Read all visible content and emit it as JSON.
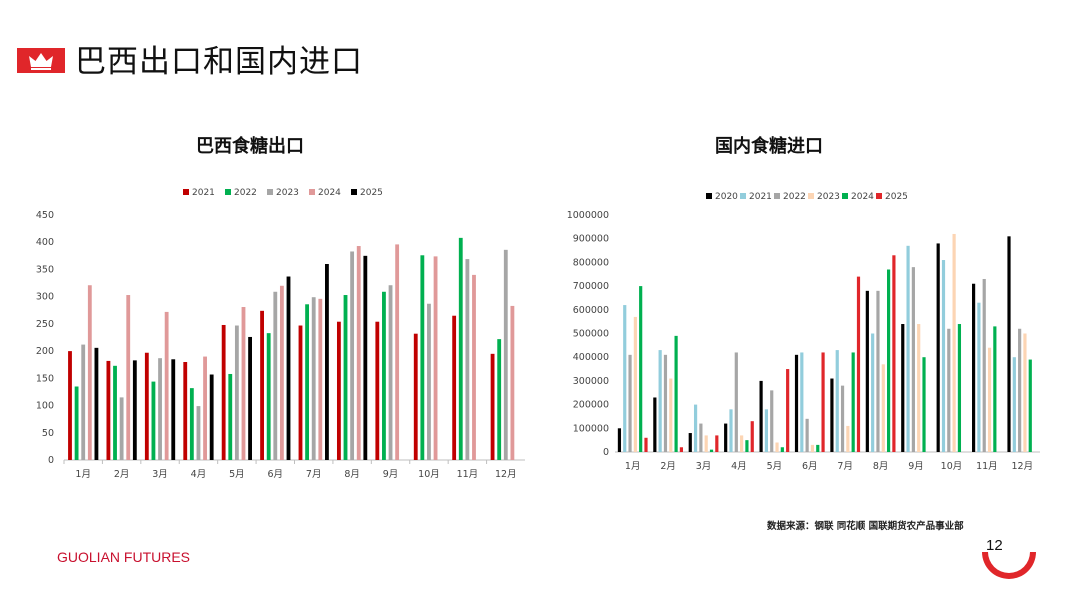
{
  "page": {
    "title": "巴西出口和国内进口",
    "source": "数据来源：钢联  同花顺  国联期货农产品事业部",
    "brand": "GUOLIAN FUTURES",
    "page_number": "12",
    "accent_color": "#e0262a"
  },
  "chart_data": [
    {
      "type": "bar",
      "title": "巴西食糖出口",
      "categories": [
        "1月",
        "2月",
        "3月",
        "4月",
        "5月",
        "6月",
        "7月",
        "8月",
        "9月",
        "10月",
        "11月",
        "12月"
      ],
      "ylim": [
        0,
        450
      ],
      "yticks": [
        0,
        50,
        100,
        150,
        200,
        250,
        300,
        350,
        400,
        450
      ],
      "legend_position": "top-center",
      "grid": false,
      "series": [
        {
          "name": "2021",
          "color": "#c00000",
          "values": [
            200,
            182,
            197,
            180,
            248,
            274,
            247,
            254,
            254,
            232,
            265,
            195
          ]
        },
        {
          "name": "2022",
          "color": "#00b050",
          "values": [
            135,
            173,
            144,
            132,
            158,
            233,
            286,
            303,
            309,
            376,
            408,
            222
          ]
        },
        {
          "name": "2023",
          "color": "#a6a6a6",
          "values": [
            212,
            115,
            187,
            99,
            247,
            309,
            299,
            383,
            321,
            287,
            369,
            386
          ]
        },
        {
          "name": "2024",
          "color": "#e09999",
          "values": [
            321,
            303,
            272,
            190,
            281,
            320,
            296,
            393,
            396,
            374,
            340,
            283
          ]
        },
        {
          "name": "2025",
          "color": "#000000",
          "values": [
            206,
            183,
            185,
            157,
            226,
            337,
            360,
            375,
            null,
            null,
            null,
            null
          ]
        }
      ]
    },
    {
      "type": "bar",
      "title": "国内食糖进口",
      "categories": [
        "1月",
        "2月",
        "3月",
        "4月",
        "5月",
        "6月",
        "7月",
        "8月",
        "9月",
        "10月",
        "11月",
        "12月"
      ],
      "ylim": [
        0,
        1000000
      ],
      "yticks": [
        0,
        100000,
        200000,
        300000,
        400000,
        500000,
        600000,
        700000,
        800000,
        900000,
        1000000
      ],
      "legend_position": "top-center",
      "grid": false,
      "series": [
        {
          "name": "2020",
          "color": "#000000",
          "values": [
            100000,
            230000,
            80000,
            120000,
            300000,
            410000,
            310000,
            680000,
            540000,
            880000,
            710000,
            910000
          ]
        },
        {
          "name": "2021",
          "color": "#92cddc",
          "values": [
            620000,
            430000,
            200000,
            180000,
            180000,
            420000,
            430000,
            500000,
            870000,
            810000,
            630000,
            400000
          ]
        },
        {
          "name": "2022",
          "color": "#a6a6a6",
          "values": [
            410000,
            410000,
            120000,
            420000,
            260000,
            140000,
            280000,
            680000,
            780000,
            520000,
            730000,
            520000
          ]
        },
        {
          "name": "2023",
          "color": "#fcd5b4",
          "values": [
            570000,
            310000,
            70000,
            70000,
            40000,
            30000,
            110000,
            370000,
            540000,
            920000,
            440000,
            500000
          ]
        },
        {
          "name": "2024",
          "color": "#00b050",
          "values": [
            700000,
            490000,
            10000,
            50000,
            20000,
            30000,
            420000,
            770000,
            400000,
            540000,
            530000,
            390000
          ]
        },
        {
          "name": "2025",
          "color": "#e0262a",
          "values": [
            60000,
            20000,
            70000,
            130000,
            350000,
            420000,
            740000,
            830000,
            null,
            null,
            null,
            null
          ]
        }
      ]
    }
  ]
}
